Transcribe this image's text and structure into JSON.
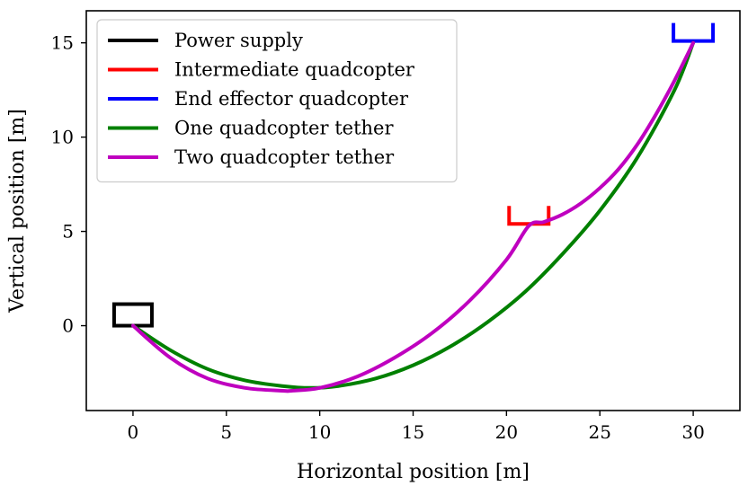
{
  "chart_data": {
    "type": "line",
    "xlabel": "Horizontal position [m]",
    "ylabel": "Vertical position [m]",
    "xlim": [
      -2.5,
      32.5
    ],
    "ylim": [
      -4.5,
      16.7
    ],
    "xticks": [
      0,
      5,
      10,
      15,
      20,
      25,
      30
    ],
    "yticks": [
      0,
      5,
      10,
      15
    ],
    "grid": false,
    "legend_position": "top-left",
    "series": [
      {
        "name": "Power supply",
        "color": "#000000",
        "kind": "box-marker",
        "x": [
          0
        ],
        "y": [
          0
        ]
      },
      {
        "name": "Intermediate quadcopter",
        "color": "#ff0000",
        "kind": "quad-marker",
        "x": [
          21.2
        ],
        "y": [
          5.3
        ]
      },
      {
        "name": "End effector quadcopter",
        "color": "#0000ff",
        "kind": "quad-marker",
        "x": [
          30
        ],
        "y": [
          15
        ]
      },
      {
        "name": "One quadcopter tether",
        "color": "#008000",
        "kind": "line",
        "x": [
          0,
          2,
          4,
          6,
          8,
          9.5,
          11,
          13,
          15,
          17,
          19,
          21,
          23,
          25,
          27,
          29,
          30
        ],
        "y": [
          0,
          -1.3,
          -2.3,
          -2.9,
          -3.2,
          -3.3,
          -3.2,
          -2.8,
          -2.1,
          -1.1,
          0.2,
          1.8,
          3.8,
          6.1,
          8.9,
          12.5,
          15
        ]
      },
      {
        "name": "Two quadcopter tether",
        "color": "#bf00bf",
        "kind": "line",
        "x": [
          0,
          2,
          4,
          6,
          8,
          8.5,
          10,
          12,
          14,
          16,
          18,
          20,
          21.2,
          22,
          23,
          24,
          25,
          26,
          27,
          28,
          29,
          30
        ],
        "y": [
          0,
          -1.7,
          -2.8,
          -3.3,
          -3.45,
          -3.45,
          -3.3,
          -2.7,
          -1.7,
          -0.4,
          1.3,
          3.5,
          5.3,
          5.5,
          5.9,
          6.5,
          7.3,
          8.3,
          9.6,
          11.2,
          13,
          15
        ]
      }
    ]
  }
}
